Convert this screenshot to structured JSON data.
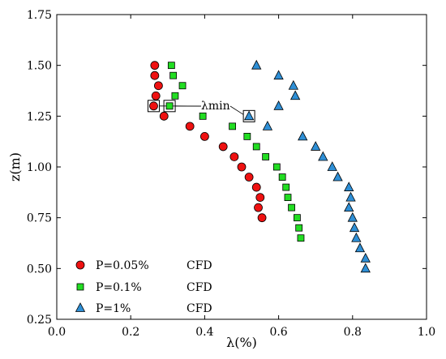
{
  "chart_data": {
    "type": "scatter",
    "xlabel": "λ(%)",
    "ylabel": "z(m)",
    "xlim": [
      0.0,
      1.0
    ],
    "ylim": [
      0.25,
      1.75
    ],
    "xticks": [
      0.0,
      0.2,
      0.4,
      0.6,
      0.8,
      1.0
    ],
    "xtick_labels": [
      "0.0",
      "0.2",
      "0.4",
      "0.6",
      "0.8",
      "1.0"
    ],
    "yticks": [
      0.25,
      0.5,
      0.75,
      1.0,
      1.25,
      1.5,
      1.75
    ],
    "ytick_labels": [
      "0.25",
      "0.50",
      "0.75",
      "1.00",
      "1.25",
      "1.50",
      "1.75"
    ],
    "grid": false,
    "legend_position": "bottom-left",
    "series": [
      {
        "name": "P=0.05%",
        "method": "CFD",
        "marker": "circle",
        "color": "#ee1111",
        "points": [
          [
            0.265,
            1.5
          ],
          [
            0.265,
            1.45
          ],
          [
            0.275,
            1.4
          ],
          [
            0.268,
            1.35
          ],
          [
            0.262,
            1.3
          ],
          [
            0.29,
            1.25
          ],
          [
            0.36,
            1.2
          ],
          [
            0.4,
            1.15
          ],
          [
            0.45,
            1.1
          ],
          [
            0.48,
            1.05
          ],
          [
            0.5,
            1.0
          ],
          [
            0.52,
            0.95
          ],
          [
            0.54,
            0.9
          ],
          [
            0.55,
            0.85
          ],
          [
            0.545,
            0.8
          ],
          [
            0.555,
            0.75
          ]
        ]
      },
      {
        "name": "P=0.1%",
        "method": "CFD",
        "marker": "square",
        "color": "#22dd22",
        "points": [
          [
            0.31,
            1.5
          ],
          [
            0.315,
            1.45
          ],
          [
            0.34,
            1.4
          ],
          [
            0.32,
            1.35
          ],
          [
            0.305,
            1.3
          ],
          [
            0.395,
            1.25
          ],
          [
            0.475,
            1.2
          ],
          [
            0.515,
            1.15
          ],
          [
            0.54,
            1.1
          ],
          [
            0.565,
            1.05
          ],
          [
            0.595,
            1.0
          ],
          [
            0.61,
            0.95
          ],
          [
            0.62,
            0.9
          ],
          [
            0.625,
            0.85
          ],
          [
            0.635,
            0.8
          ],
          [
            0.65,
            0.75
          ],
          [
            0.655,
            0.7
          ],
          [
            0.66,
            0.65
          ]
        ]
      },
      {
        "name": "P=1%",
        "method": "CFD",
        "marker": "triangle",
        "color": "#2e8fd6",
        "points": [
          [
            0.54,
            1.5
          ],
          [
            0.6,
            1.45
          ],
          [
            0.64,
            1.4
          ],
          [
            0.645,
            1.35
          ],
          [
            0.6,
            1.3
          ],
          [
            0.52,
            1.25
          ],
          [
            0.57,
            1.2
          ],
          [
            0.665,
            1.15
          ],
          [
            0.7,
            1.1
          ],
          [
            0.72,
            1.05
          ],
          [
            0.745,
            1.0
          ],
          [
            0.76,
            0.95
          ],
          [
            0.79,
            0.9
          ],
          [
            0.795,
            0.85
          ],
          [
            0.79,
            0.8
          ],
          [
            0.8,
            0.75
          ],
          [
            0.805,
            0.7
          ],
          [
            0.81,
            0.65
          ],
          [
            0.82,
            0.6
          ],
          [
            0.835,
            0.55
          ],
          [
            0.835,
            0.5
          ]
        ]
      }
    ],
    "annotation": {
      "text": "λmin",
      "targets": [
        [
          0.262,
          1.3
        ],
        [
          0.305,
          1.3
        ],
        [
          0.52,
          1.25
        ]
      ]
    }
  }
}
